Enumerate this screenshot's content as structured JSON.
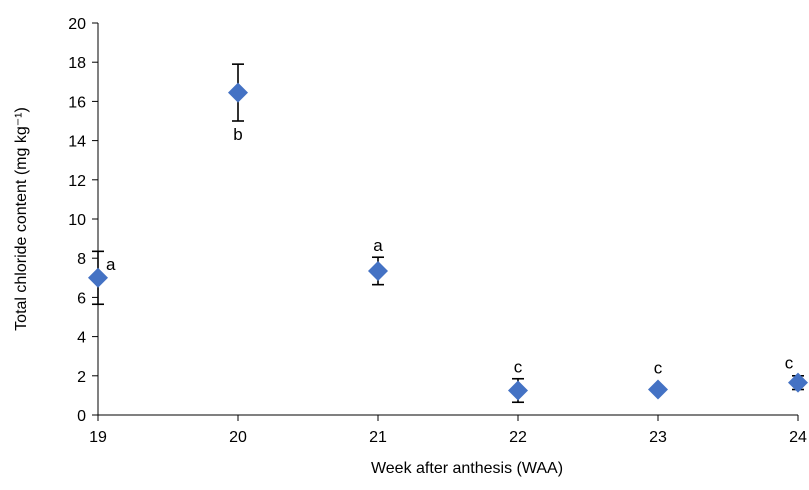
{
  "chart_data": {
    "type": "scatter",
    "title": "",
    "xlabel": "Week after anthesis (WAA)",
    "ylabel": "Total chloride content (mg kg⁻¹)",
    "xlim": [
      19,
      24
    ],
    "ylim": [
      0,
      20
    ],
    "x_ticks": [
      "19",
      "20",
      "21",
      "22",
      "23",
      "24"
    ],
    "y_ticks": [
      "0",
      "2",
      "4",
      "6",
      "8",
      "10",
      "12",
      "14",
      "16",
      "18",
      "20"
    ],
    "grid": false,
    "legend": "none",
    "marker": "diamond",
    "marker_color": "#4472C4",
    "points": [
      {
        "x": 19,
        "y": 7.0,
        "err": 1.35,
        "label": "a",
        "label_position": "right"
      },
      {
        "x": 20,
        "y": 16.45,
        "err": 1.45,
        "label": "b",
        "label_position": "below"
      },
      {
        "x": 21,
        "y": 7.35,
        "err": 0.7,
        "label": "a",
        "label_position": "above"
      },
      {
        "x": 22,
        "y": 1.25,
        "err": 0.6,
        "label": "c",
        "label_position": "above"
      },
      {
        "x": 23,
        "y": 1.3,
        "err": 0.0,
        "label": "c",
        "label_position": "above"
      },
      {
        "x": 24,
        "y": 1.65,
        "err": 0.35,
        "label": "c",
        "label_position": "above-left"
      }
    ]
  }
}
